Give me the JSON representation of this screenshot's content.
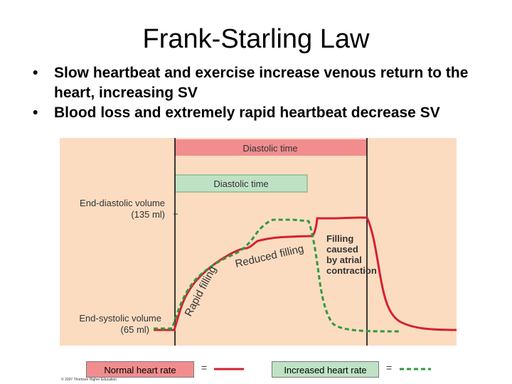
{
  "slide": {
    "title": "Frank-Starling Law",
    "bullets": [
      "Slow heartbeat and exercise increase venous return to the heart, increasing SV",
      "Blood loss and extremely rapid heartbeat decrease SV"
    ]
  },
  "diagram": {
    "bars": {
      "normal_label": "Diastolic time",
      "increased_label": "Diastolic time"
    },
    "axis_labels": {
      "edv_line1": "End-diastolic volume",
      "edv_line2": "(135 ml)",
      "esv_line1": "End-systolic volume",
      "esv_line2": "(65 ml)"
    },
    "annotations": {
      "rapid_filling": "Rapid filling",
      "reduced_filling": "Reduced filling",
      "filling_caused": [
        "Filling",
        "caused",
        "by atrial",
        "contraction"
      ]
    },
    "colors": {
      "background": "#fbdcc1",
      "normal": "#d3212f",
      "increased": "#2e9a3e",
      "normal_bar": "#f18d8f",
      "increased_bar": "#bfe2c4"
    }
  },
  "legend": {
    "normal_label": "Normal heart rate",
    "increased_label": "Increased heart rate",
    "equals": "="
  },
  "credit": "© 2007 Thomson Higher Education"
}
